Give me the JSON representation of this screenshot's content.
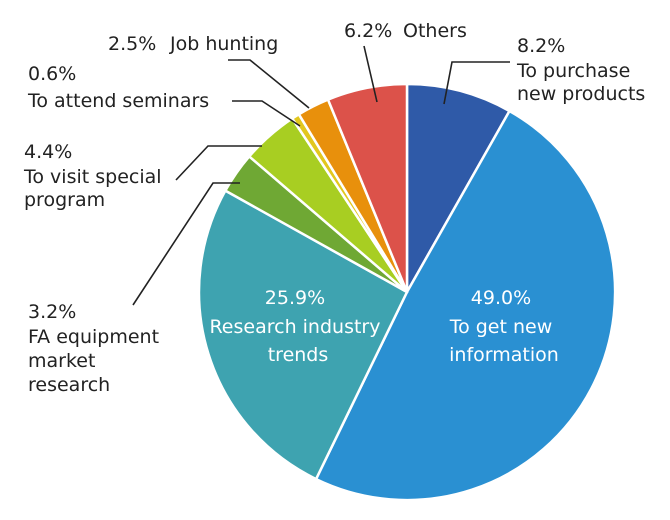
{
  "chart_data": {
    "type": "pie",
    "title": "",
    "unit": "%",
    "slices": [
      {
        "label": "To purchase new products",
        "lines": [
          "To purchase",
          "new products"
        ],
        "pct": "8.2%",
        "value": 8.2,
        "color": "#2f5aa8"
      },
      {
        "label": "To get new information",
        "lines": [
          "To get new",
          "information"
        ],
        "pct": "49.0%",
        "value": 49.0,
        "color": "#2a90d2"
      },
      {
        "label": "Research industry trends",
        "lines": [
          "Research industry",
          "trends"
        ],
        "pct": "25.9%",
        "value": 25.9,
        "color": "#3ea3b0"
      },
      {
        "label": "FA equipment market research",
        "lines": [
          "FA equipment",
          "market",
          "research"
        ],
        "pct": "3.2%",
        "value": 3.2,
        "color": "#6fa834"
      },
      {
        "label": "To visit special program",
        "lines": [
          "To visit special",
          "program"
        ],
        "pct": "4.4%",
        "value": 4.4,
        "color": "#a8ce22"
      },
      {
        "label": "To attend seminars",
        "lines": [
          "To attend seminars"
        ],
        "pct": "0.6%",
        "value": 0.6,
        "color": "#e2c71e"
      },
      {
        "label": "Job hunting",
        "lines": [
          "Job hunting"
        ],
        "pct": "2.5%",
        "value": 2.5,
        "color": "#e8900c"
      },
      {
        "label": "Others",
        "lines": [
          "Others"
        ],
        "pct": "6.2%",
        "value": 6.2,
        "color": "#dc524a"
      }
    ]
  }
}
